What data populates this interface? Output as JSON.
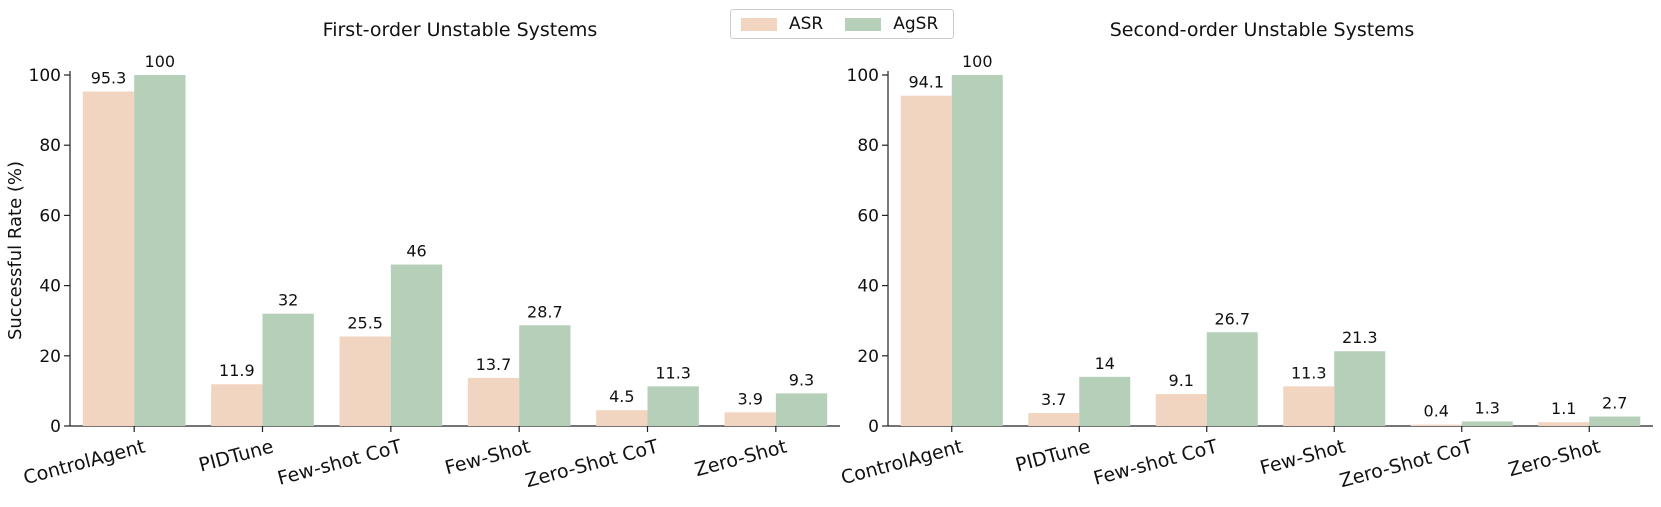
{
  "legend": [
    {
      "name": "ASR",
      "color": "#f2d5c1"
    },
    {
      "name": "AgSR",
      "color": "#b6cfb9"
    }
  ],
  "chart_data": [
    {
      "type": "bar",
      "title": "First-order Unstable Systems",
      "ylabel": "Successful Rate (%)",
      "ylim": [
        0,
        100
      ],
      "yticks": [
        0,
        20,
        40,
        60,
        80,
        100
      ],
      "categories": [
        "ControlAgent",
        "PIDTune",
        "Few-shot CoT",
        "Few-Shot",
        "Zero-Shot CoT",
        "Zero-Shot"
      ],
      "series": [
        {
          "name": "ASR",
          "color": "#f2d5c1",
          "values": [
            95.3,
            11.9,
            25.5,
            13.7,
            4.5,
            3.9
          ],
          "labels": [
            "95.3",
            "11.9",
            "25.5",
            "13.7",
            "4.5",
            "3.9"
          ]
        },
        {
          "name": "AgSR",
          "color": "#b6cfb9",
          "values": [
            100,
            32,
            46,
            28.7,
            11.3,
            9.3
          ],
          "labels": [
            "100",
            "32",
            "46",
            "28.7",
            "11.3",
            "9.3"
          ]
        }
      ],
      "grid": false
    },
    {
      "type": "bar",
      "title": "Second-order Unstable Systems",
      "ylabel": "",
      "ylim": [
        0,
        100
      ],
      "yticks": [
        0,
        20,
        40,
        60,
        80,
        100
      ],
      "categories": [
        "ControlAgent",
        "PIDTune",
        "Few-shot CoT",
        "Few-Shot",
        "Zero-Shot CoT",
        "Zero-Shot"
      ],
      "series": [
        {
          "name": "ASR",
          "color": "#f2d5c1",
          "values": [
            94.1,
            3.7,
            9.1,
            11.3,
            0.4,
            1.1
          ],
          "labels": [
            "94.1",
            "3.7",
            "9.1",
            "11.3",
            "0.4",
            "1.1"
          ]
        },
        {
          "name": "AgSR",
          "color": "#b6cfb9",
          "values": [
            100,
            14,
            26.7,
            21.3,
            1.3,
            2.7
          ],
          "labels": [
            "100",
            "14",
            "26.7",
            "21.3",
            "1.3",
            "2.7"
          ]
        }
      ],
      "grid": false
    }
  ]
}
